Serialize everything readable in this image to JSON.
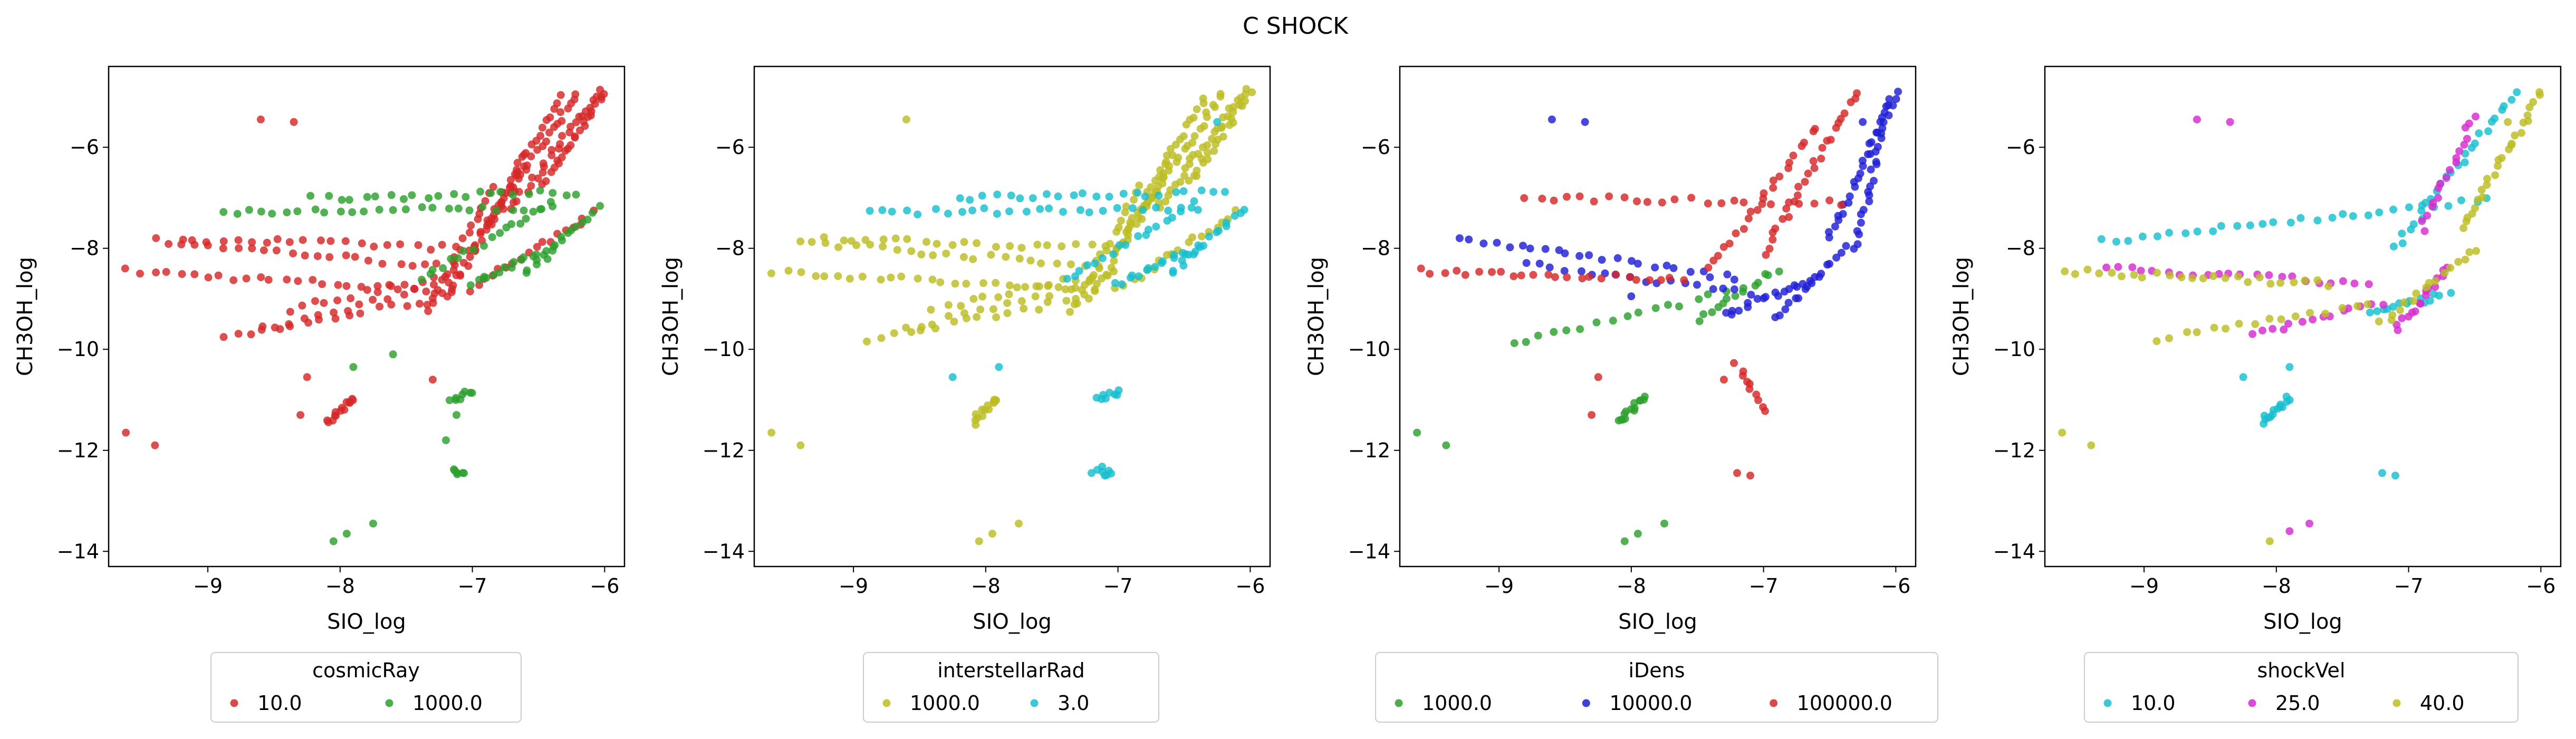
{
  "figure": {
    "title": "C SHOCK"
  },
  "chart_data": [
    {
      "type": "scatter",
      "xlabel": "SIO_log",
      "ylabel": "CH3OH_log",
      "xlim": [
        -9.75,
        -5.85
      ],
      "ylim": [
        -14.3,
        -4.4
      ],
      "xticks": [
        -9,
        -8,
        -7,
        -6
      ],
      "yticks": [
        -14,
        -12,
        -10,
        -8,
        -6
      ],
      "grid": false,
      "legend_position": "below",
      "legend_title": "cosmicRay",
      "series": [
        {
          "name": "10.0",
          "color": "#d62728",
          "cluster": "a",
          "points": [
            [
              -9.62,
              -11.65
            ],
            [
              -9.4,
              -11.9
            ],
            [
              -8.6,
              -5.45
            ],
            [
              -8.35,
              -5.5
            ],
            [
              -8.25,
              -10.55
            ],
            [
              -8.3,
              -11.3
            ],
            [
              -7.3,
              -10.6
            ]
          ]
        },
        {
          "name": "1000.0",
          "color": "#2ca02c",
          "cluster": "b",
          "points": [
            [
              -8.05,
              -13.8
            ],
            [
              -7.95,
              -13.65
            ],
            [
              -7.75,
              -13.45
            ],
            [
              -7.9,
              -10.35
            ],
            [
              -7.6,
              -10.1
            ],
            [
              -7.2,
              -11.8
            ],
            [
              -7.12,
              -11.3
            ]
          ]
        }
      ]
    },
    {
      "type": "scatter",
      "xlabel": "SIO_log",
      "ylabel": "CH3OH_log",
      "xlim": [
        -9.75,
        -5.85
      ],
      "ylim": [
        -14.3,
        -4.4
      ],
      "xticks": [
        -9,
        -8,
        -7,
        -6
      ],
      "yticks": [
        -14,
        -12,
        -10,
        -8,
        -6
      ],
      "grid": false,
      "legend_position": "below",
      "legend_title": "interstellarRad",
      "series": [
        {
          "name": "1000.0",
          "color": "#bcbd22",
          "cluster": "a",
          "points": [
            [
              -9.62,
              -11.65
            ],
            [
              -9.4,
              -11.9
            ],
            [
              -8.6,
              -5.45
            ],
            [
              -8.05,
              -13.8
            ],
            [
              -7.95,
              -13.65
            ],
            [
              -7.75,
              -13.45
            ]
          ]
        },
        {
          "name": "3.0",
          "color": "#17becf",
          "cluster": "b",
          "points": [
            [
              -8.25,
              -10.55
            ],
            [
              -7.9,
              -10.35
            ],
            [
              -7.2,
              -12.45
            ],
            [
              -7.1,
              -12.5
            ],
            [
              -6.25,
              -5.5
            ]
          ]
        }
      ]
    },
    {
      "type": "scatter",
      "xlabel": "SIO_log",
      "ylabel": "CH3OH_log",
      "xlim": [
        -9.75,
        -5.85
      ],
      "ylim": [
        -14.3,
        -4.4
      ],
      "xticks": [
        -9,
        -8,
        -7,
        -6
      ],
      "yticks": [
        -14,
        -12,
        -10,
        -8,
        -6
      ],
      "grid": false,
      "legend_position": "below",
      "legend_title": "iDens",
      "series": [
        {
          "name": "1000.0",
          "color": "#2ca02c",
          "cluster": "d",
          "points": [
            [
              -9.62,
              -11.65
            ],
            [
              -9.4,
              -11.9
            ],
            [
              -8.05,
              -13.8
            ],
            [
              -7.95,
              -13.65
            ],
            [
              -7.75,
              -13.45
            ]
          ]
        },
        {
          "name": "10000.0",
          "color": "#1f1fd6",
          "cluster": "e",
          "points": [
            [
              -8.6,
              -5.45
            ],
            [
              -8.35,
              -5.5
            ],
            [
              -8.0,
              -8.95
            ],
            [
              -6.25,
              -5.5
            ]
          ]
        },
        {
          "name": "100000.0",
          "color": "#d62728",
          "cluster": "f",
          "points": [
            [
              -8.25,
              -10.55
            ],
            [
              -8.3,
              -11.3
            ],
            [
              -7.3,
              -10.6
            ],
            [
              -7.2,
              -12.45
            ],
            [
              -7.1,
              -12.5
            ]
          ]
        }
      ]
    },
    {
      "type": "scatter",
      "xlabel": "SIO_log",
      "ylabel": "CH3OH_log",
      "xlim": [
        -9.75,
        -5.85
      ],
      "ylim": [
        -14.3,
        -4.4
      ],
      "xticks": [
        -9,
        -8,
        -7,
        -6
      ],
      "yticks": [
        -14,
        -12,
        -10,
        -8,
        -6
      ],
      "grid": false,
      "legend_position": "below",
      "legend_title": "shockVel",
      "series": [
        {
          "name": "10.0",
          "color": "#17becf",
          "cluster": "g",
          "points": [
            [
              -8.25,
              -10.55
            ],
            [
              -7.2,
              -12.45
            ],
            [
              -7.1,
              -12.5
            ],
            [
              -7.9,
              -10.35
            ]
          ]
        },
        {
          "name": "25.0",
          "color": "#d62bd1",
          "cluster": "h",
          "points": [
            [
              -8.6,
              -5.45
            ],
            [
              -8.35,
              -5.5
            ],
            [
              -7.75,
              -13.45
            ],
            [
              -7.9,
              -13.6
            ]
          ]
        },
        {
          "name": "40.0",
          "color": "#bcbd22",
          "cluster": "i",
          "points": [
            [
              -9.62,
              -11.65
            ],
            [
              -9.4,
              -11.9
            ],
            [
              -8.05,
              -13.8
            ],
            [
              -6.25,
              -5.5
            ]
          ]
        }
      ]
    }
  ],
  "scatter_structure": {
    "a": {
      "comment": "",
      "fans": [
        {
          "from": [
            -9.6,
            -8.45
          ],
          "to": [
            -7.15,
            -8.85
          ],
          "n": 26
        },
        {
          "from": [
            -9.4,
            -7.85
          ],
          "to": [
            -7.05,
            -8.4
          ],
          "n": 24
        },
        {
          "from": [
            -9.2,
            -7.8
          ],
          "to": [
            -7.0,
            -8.0
          ],
          "n": 22
        },
        {
          "from": [
            -8.9,
            -9.8
          ],
          "to": [
            -7.3,
            -9.0
          ],
          "n": 16
        },
        {
          "from": [
            -8.6,
            -9.6
          ],
          "to": [
            -7.2,
            -8.7
          ],
          "n": 14
        },
        {
          "from": [
            -8.4,
            -9.2
          ],
          "to": [
            -7.1,
            -8.5
          ],
          "n": 14
        },
        {
          "from": [
            -7.35,
            -9.3
          ],
          "to": [
            -6.85,
            -6.8
          ],
          "n": 20
        },
        {
          "from": [
            -7.2,
            -9.0
          ],
          "to": [
            -6.6,
            -6.2
          ],
          "n": 22
        },
        {
          "from": [
            -7.0,
            -8.0
          ],
          "to": [
            -6.35,
            -5.0
          ],
          "n": 26
        },
        {
          "from": [
            -6.9,
            -7.6
          ],
          "to": [
            -6.2,
            -4.9
          ],
          "n": 26
        },
        {
          "from": [
            -6.7,
            -7.2
          ],
          "to": [
            -6.05,
            -4.9
          ],
          "n": 26
        },
        {
          "from": [
            -6.45,
            -6.7
          ],
          "to": [
            -6.0,
            -4.9
          ],
          "n": 22
        },
        {
          "from": [
            -7.0,
            -8.8
          ],
          "to": [
            -6.1,
            -7.3
          ],
          "n": 18
        },
        {
          "from": [
            -8.1,
            -11.45
          ],
          "to": [
            -7.9,
            -10.95
          ],
          "n": 14
        }
      ]
    },
    "b": {
      "comment": "",
      "fans": [
        {
          "from": [
            -8.9,
            -7.3
          ],
          "to": [
            -6.4,
            -7.2
          ],
          "n": 26
        },
        {
          "from": [
            -8.2,
            -7.0
          ],
          "to": [
            -6.2,
            -6.9
          ],
          "n": 22
        },
        {
          "from": [
            -7.4,
            -8.6
          ],
          "to": [
            -6.4,
            -7.1
          ],
          "n": 18
        },
        {
          "from": [
            -7.0,
            -8.7
          ],
          "to": [
            -6.4,
            -8.0
          ],
          "n": 16
        },
        {
          "from": [
            -6.6,
            -8.5
          ],
          "to": [
            -6.05,
            -7.2
          ],
          "n": 16
        },
        {
          "from": [
            -7.15,
            -11.0
          ],
          "to": [
            -7.0,
            -10.85
          ],
          "n": 8
        },
        {
          "from": [
            -7.15,
            -12.35
          ],
          "to": [
            -7.05,
            -12.5
          ],
          "n": 6
        }
      ]
    },
    "d": {
      "comment": "",
      "fans": [
        {
          "from": [
            -8.1,
            -11.45
          ],
          "to": [
            -7.9,
            -10.95
          ],
          "n": 14
        },
        {
          "from": [
            -8.9,
            -9.9
          ],
          "to": [
            -7.3,
            -8.9
          ],
          "n": 16
        },
        {
          "from": [
            -7.5,
            -9.4
          ],
          "to": [
            -6.9,
            -8.4
          ],
          "n": 14
        }
      ]
    },
    "e": {
      "comment": "",
      "fans": [
        {
          "from": [
            -9.3,
            -7.8
          ],
          "to": [
            -7.2,
            -8.6
          ],
          "n": 24
        },
        {
          "from": [
            -8.8,
            -8.3
          ],
          "to": [
            -7.1,
            -8.9
          ],
          "n": 18
        },
        {
          "from": [
            -7.3,
            -9.3
          ],
          "to": [
            -6.6,
            -8.6
          ],
          "n": 18
        },
        {
          "from": [
            -6.9,
            -9.4
          ],
          "to": [
            -6.4,
            -8.0
          ],
          "n": 16
        },
        {
          "from": [
            -6.5,
            -7.8
          ],
          "to": [
            -6.0,
            -4.9
          ],
          "n": 28
        },
        {
          "from": [
            -6.3,
            -8.0
          ],
          "to": [
            -6.05,
            -5.1
          ],
          "n": 24
        }
      ]
    },
    "f": {
      "comment": "",
      "fans": [
        {
          "from": [
            -9.6,
            -8.45
          ],
          "to": [
            -7.6,
            -8.6
          ],
          "n": 24
        },
        {
          "from": [
            -8.8,
            -7.0
          ],
          "to": [
            -6.4,
            -7.1
          ],
          "n": 24
        },
        {
          "from": [
            -7.0,
            -8.1
          ],
          "to": [
            -6.3,
            -4.9
          ],
          "n": 26
        },
        {
          "from": [
            -7.4,
            -8.4
          ],
          "to": [
            -6.6,
            -5.6
          ],
          "n": 22
        },
        {
          "from": [
            -7.2,
            -10.3
          ],
          "to": [
            -7.0,
            -11.2
          ],
          "n": 10
        }
      ]
    },
    "g": {
      "comment": "",
      "fans": [
        {
          "from": [
            -9.3,
            -7.85
          ],
          "to": [
            -6.4,
            -7.05
          ],
          "n": 30
        },
        {
          "from": [
            -8.1,
            -11.45
          ],
          "to": [
            -7.9,
            -10.95
          ],
          "n": 14
        },
        {
          "from": [
            -7.1,
            -8.0
          ],
          "to": [
            -6.2,
            -4.9
          ],
          "n": 26
        },
        {
          "from": [
            -7.3,
            -9.3
          ],
          "to": [
            -6.7,
            -8.9
          ],
          "n": 14
        }
      ]
    },
    "h": {
      "comment": "",
      "fans": [
        {
          "from": [
            -9.3,
            -8.4
          ],
          "to": [
            -7.3,
            -8.7
          ],
          "n": 22
        },
        {
          "from": [
            -8.2,
            -9.7
          ],
          "to": [
            -7.2,
            -9.1
          ],
          "n": 14
        },
        {
          "from": [
            -7.1,
            -9.6
          ],
          "to": [
            -6.7,
            -8.4
          ],
          "n": 16
        },
        {
          "from": [
            -6.9,
            -7.6
          ],
          "to": [
            -6.5,
            -5.4
          ],
          "n": 18
        }
      ]
    },
    "i": {
      "comment": "",
      "fans": [
        {
          "from": [
            -9.6,
            -8.45
          ],
          "to": [
            -7.6,
            -8.7
          ],
          "n": 24
        },
        {
          "from": [
            -8.9,
            -9.8
          ],
          "to": [
            -7.3,
            -9.1
          ],
          "n": 16
        },
        {
          "from": [
            -7.2,
            -9.5
          ],
          "to": [
            -6.5,
            -8.0
          ],
          "n": 16
        },
        {
          "from": [
            -6.6,
            -7.6
          ],
          "to": [
            -6.0,
            -4.9
          ],
          "n": 26
        }
      ]
    }
  }
}
